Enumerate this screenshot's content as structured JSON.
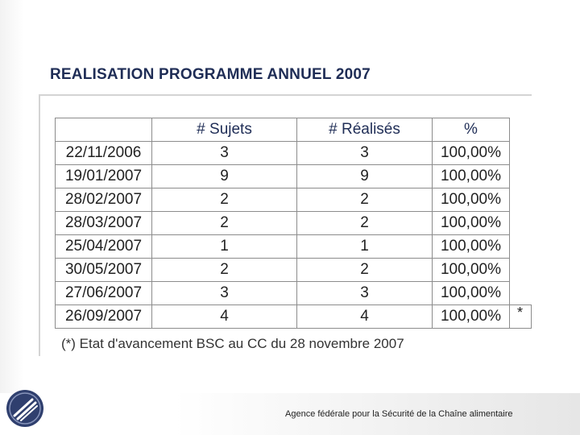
{
  "slide": {
    "title": "REALISATION PROGRAMME ANNUEL 2007",
    "note": "(*) Etat d'avancement BSC au CC du 28 novembre 2007",
    "asterisk": "*",
    "footer": "Agence fédérale pour la Sécurité de la Chaîne alimentaire",
    "logo_icon": "afsca-logo-icon"
  },
  "colors": {
    "title": "#1f2d56",
    "percent": "#2c9a1f"
  },
  "table": {
    "headers": [
      "",
      "# Sujets",
      "# Réalisés",
      "%"
    ],
    "rows": [
      {
        "date": "22/11/2006",
        "sujets": "3",
        "realises": "3",
        "pct": "100,00%"
      },
      {
        "date": "19/01/2007",
        "sujets": "9",
        "realises": "9",
        "pct": "100,00%"
      },
      {
        "date": "28/02/2007",
        "sujets": "2",
        "realises": "2",
        "pct": "100,00%"
      },
      {
        "date": "28/03/2007",
        "sujets": "2",
        "realises": "2",
        "pct": "100,00%"
      },
      {
        "date": "25/04/2007",
        "sujets": "1",
        "realises": "1",
        "pct": "100,00%"
      },
      {
        "date": "30/05/2007",
        "sujets": "2",
        "realises": "2",
        "pct": "100,00%"
      },
      {
        "date": "27/06/2007",
        "sujets": "3",
        "realises": "3",
        "pct": "100,00%"
      },
      {
        "date": "26/09/2007",
        "sujets": "4",
        "realises": "4",
        "pct": "100,00%"
      }
    ]
  }
}
